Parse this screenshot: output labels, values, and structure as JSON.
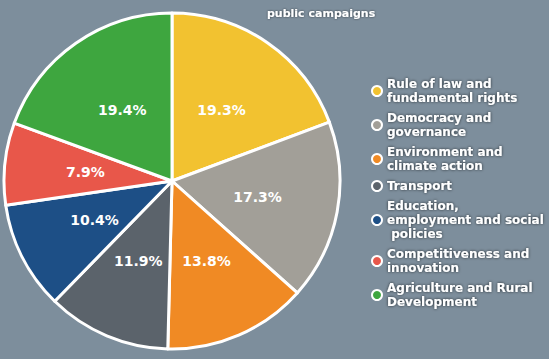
{
  "chart_data": {
    "type": "pie",
    "title": "public campaigns",
    "categories": [
      "Rule of law and fundamental rights",
      "Democracy and governance",
      "Environment and climate action",
      "Transport",
      "Education, employment and social policies",
      "Competitiveness and innovation",
      "Agriculture and Rural Development"
    ],
    "values": [
      19.3,
      17.3,
      13.8,
      11.9,
      10.4,
      7.9,
      19.4
    ],
    "value_labels": [
      "19.3%",
      "17.3%",
      "13.8%",
      "11.9%",
      "10.4%",
      "7.9%",
      "19.4%"
    ],
    "colors": [
      "#f2c230",
      "#a29f98",
      "#f08a24",
      "#5b636b",
      "#1d4f86",
      "#e8574a",
      "#3ea63f"
    ],
    "data_labels": true,
    "legend": "right"
  }
}
